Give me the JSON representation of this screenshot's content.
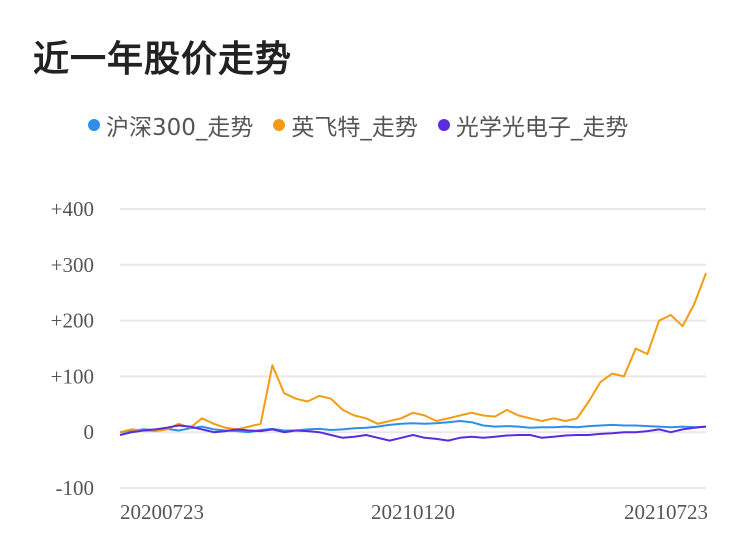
{
  "title": "近一年股价走势",
  "chart_data": {
    "type": "line",
    "title": "近一年股价走势",
    "xlabel": "",
    "ylabel": "",
    "ylim": [
      -100,
      400
    ],
    "yticks": [
      {
        "value": 400,
        "label": "+400"
      },
      {
        "value": 300,
        "label": "+300"
      },
      {
        "value": 200,
        "label": "+200"
      },
      {
        "value": 100,
        "label": "+100"
      },
      {
        "value": 0,
        "label": "0"
      },
      {
        "value": -100,
        "label": "-100"
      }
    ],
    "xticks": [
      {
        "index": 0,
        "label": "20200723"
      },
      {
        "index": 25,
        "label": "20210120"
      },
      {
        "index": 50,
        "label": "20210723"
      }
    ],
    "grid": true,
    "legend_position": "top-left",
    "series": [
      {
        "name": "沪深300_走势",
        "color": "#2f8fe8",
        "values": [
          0,
          3,
          5,
          4,
          6,
          3,
          7,
          10,
          5,
          3,
          2,
          0,
          4,
          6,
          3,
          3,
          5,
          6,
          4,
          5,
          7,
          8,
          10,
          13,
          15,
          16,
          15,
          16,
          18,
          20,
          18,
          12,
          10,
          11,
          10,
          8,
          9,
          9,
          10,
          9,
          11,
          12,
          13,
          12,
          12,
          11,
          10,
          9,
          10,
          9,
          10
        ]
      },
      {
        "name": "英飞特_走势",
        "color": "#f39c12",
        "values": [
          0,
          5,
          3,
          2,
          5,
          15,
          8,
          25,
          15,
          8,
          5,
          10,
          15,
          120,
          70,
          60,
          55,
          65,
          60,
          40,
          30,
          25,
          15,
          20,
          25,
          35,
          30,
          20,
          25,
          30,
          35,
          30,
          28,
          40,
          30,
          25,
          20,
          25,
          20,
          25,
          55,
          90,
          105,
          100,
          150,
          140,
          200,
          210,
          190,
          230,
          285
        ]
      },
      {
        "name": "光学光电子_走势",
        "color": "#5b2be0",
        "values": [
          -5,
          0,
          3,
          5,
          8,
          12,
          10,
          5,
          0,
          2,
          5,
          3,
          2,
          5,
          0,
          3,
          2,
          0,
          -5,
          -10,
          -8,
          -5,
          -10,
          -15,
          -10,
          -5,
          -10,
          -12,
          -15,
          -10,
          -8,
          -10,
          -8,
          -6,
          -5,
          -5,
          -10,
          -8,
          -6,
          -5,
          -5,
          -3,
          -2,
          0,
          0,
          2,
          5,
          0,
          5,
          8,
          10
        ]
      }
    ]
  }
}
